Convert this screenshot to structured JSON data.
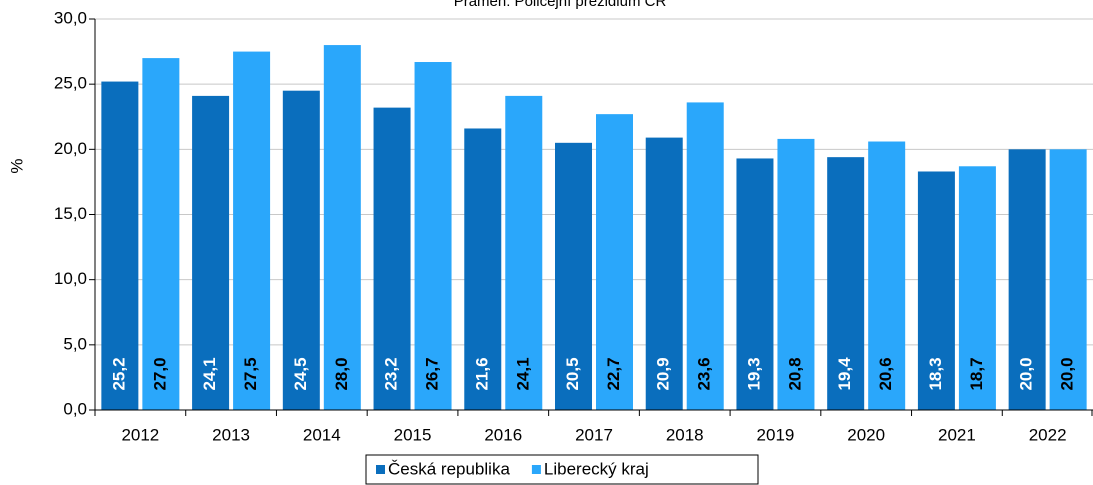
{
  "chart_data": {
    "type": "bar",
    "subtitle": "Pramen: Policejní prezidium ČR",
    "ylabel": "%",
    "categories": [
      "2012",
      "2013",
      "2014",
      "2015",
      "2016",
      "2017",
      "2018",
      "2019",
      "2020",
      "2021",
      "2022"
    ],
    "series": [
      {
        "name": "Česká republika",
        "color": "#0a6ebd",
        "values": [
          25.2,
          24.1,
          24.5,
          23.2,
          21.6,
          20.5,
          20.9,
          19.3,
          19.4,
          18.3,
          20.0
        ],
        "value_labels": [
          "25,2",
          "24,1",
          "24,5",
          "23,2",
          "21,6",
          "20,5",
          "20,9",
          "19,3",
          "19,4",
          "18,3",
          "20,0"
        ]
      },
      {
        "name": "Liberecký kraj",
        "color": "#2aa7fb",
        "values": [
          27.0,
          27.5,
          28.0,
          26.7,
          24.1,
          22.7,
          23.6,
          20.8,
          20.6,
          18.7,
          20.0
        ],
        "value_labels": [
          "27,0",
          "27,5",
          "28,0",
          "26,7",
          "24,1",
          "22,7",
          "23,6",
          "20,8",
          "20,6",
          "18,7",
          "20,0"
        ]
      }
    ],
    "ylim": [
      0,
      30
    ],
    "yticks": [
      {
        "value": 0,
        "label": "0,0"
      },
      {
        "value": 5,
        "label": "5,0"
      },
      {
        "value": 10,
        "label": "10,0"
      },
      {
        "value": 15,
        "label": "15,0"
      },
      {
        "value": 20,
        "label": "20,0"
      },
      {
        "value": 25,
        "label": "25,0"
      },
      {
        "value": 30,
        "label": "30,0"
      }
    ],
    "grid": true,
    "legend": "bottom"
  }
}
